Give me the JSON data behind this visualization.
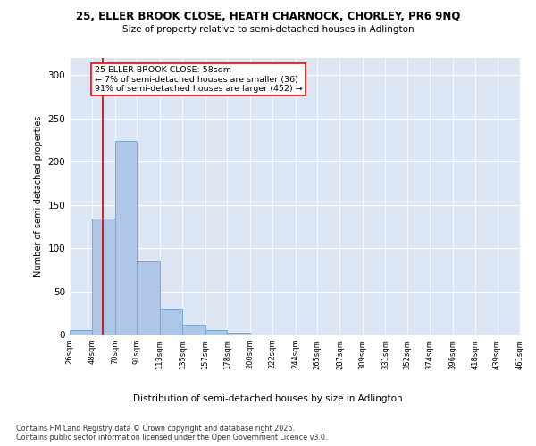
{
  "title_line1": "25, ELLER BROOK CLOSE, HEATH CHARNOCK, CHORLEY, PR6 9NQ",
  "title_line2": "Size of property relative to semi-detached houses in Adlington",
  "xlabel": "Distribution of semi-detached houses by size in Adlington",
  "ylabel": "Number of semi-detached properties",
  "annotation_title": "25 ELLER BROOK CLOSE: 58sqm",
  "annotation_line2": "← 7% of semi-detached houses are smaller (36)",
  "annotation_line3": "91% of semi-detached houses are larger (452) →",
  "footnote": "Contains HM Land Registry data © Crown copyright and database right 2025.\nContains public sector information licensed under the Open Government Licence v3.0.",
  "bar_edges": [
    26,
    48,
    70,
    91,
    113,
    135,
    157,
    178,
    200,
    222,
    244,
    265,
    287,
    309,
    331,
    352,
    374,
    396,
    418,
    439,
    461
  ],
  "bar_heights": [
    5,
    134,
    224,
    85,
    30,
    11,
    5,
    2,
    0,
    0,
    0,
    0,
    0,
    0,
    0,
    0,
    0,
    0,
    0,
    0,
    2
  ],
  "bar_color": "#aec6e8",
  "bar_edge_color": "#6aa3cd",
  "vline_x": 58,
  "vline_color": "#cc0000",
  "background_color": "#dce6f5",
  "ylim": [
    0,
    320
  ],
  "xlim": [
    26,
    461
  ],
  "yticks": [
    0,
    50,
    100,
    150,
    200,
    250,
    300
  ],
  "tick_labels": [
    "26sqm",
    "48sqm",
    "70sqm",
    "91sqm",
    "113sqm",
    "135sqm",
    "157sqm",
    "178sqm",
    "200sqm",
    "222sqm",
    "244sqm",
    "265sqm",
    "287sqm",
    "309sqm",
    "331sqm",
    "352sqm",
    "374sqm",
    "396sqm",
    "418sqm",
    "439sqm",
    "461sqm"
  ]
}
